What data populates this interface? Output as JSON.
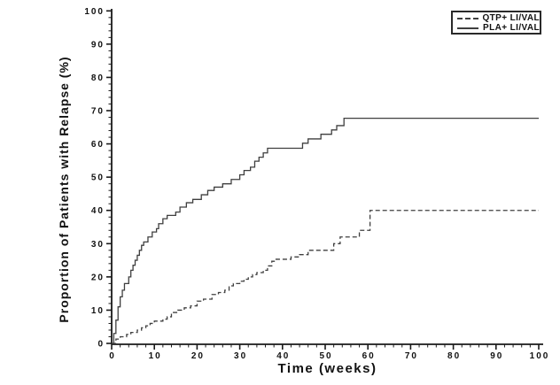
{
  "page": {
    "background_color": "#ffffff",
    "axis_color": "#1a1a1a",
    "curve_color": "#3f3f3f"
  },
  "chart_data": {
    "type": "line",
    "subtype": "kaplan-meier-step",
    "title": "",
    "xlabel": "Time (weeks)",
    "ylabel": "Proportion of Patients with Relapse (%)",
    "xlim": [
      0,
      100
    ],
    "ylim": [
      0,
      100
    ],
    "x_major_ticks": [
      0,
      10,
      20,
      30,
      40,
      50,
      60,
      70,
      80,
      90,
      100
    ],
    "x_minor_step": 2,
    "y_major_ticks": [
      0,
      10,
      20,
      30,
      40,
      50,
      60,
      70,
      80,
      90,
      100
    ],
    "y_minor_step": 2,
    "grid": false,
    "legend": {
      "position": "top-right",
      "border": true,
      "entries": [
        {
          "label": "QTP+ LI/VAL",
          "line_style": "dashed"
        },
        {
          "label": "PLA+ LI/VAL",
          "line_style": "solid"
        }
      ]
    },
    "series": [
      {
        "name": "QTP+ LI/VAL",
        "line_style": "dashed",
        "color": "#3f3f3f",
        "points": [
          [
            0,
            0
          ],
          [
            1,
            1.3
          ],
          [
            2,
            2
          ],
          [
            3.5,
            2.7
          ],
          [
            4.5,
            3.3
          ],
          [
            6,
            4
          ],
          [
            7,
            4.7
          ],
          [
            8,
            5.3
          ],
          [
            9,
            6
          ],
          [
            10,
            6.7
          ],
          [
            12,
            7.3
          ],
          [
            13,
            8
          ],
          [
            14,
            9.3
          ],
          [
            15.5,
            10
          ],
          [
            17,
            10.7
          ],
          [
            18.5,
            11.3
          ],
          [
            20,
            12.7
          ],
          [
            21.5,
            13.3
          ],
          [
            23.5,
            14.7
          ],
          [
            25,
            15.3
          ],
          [
            26.5,
            16
          ],
          [
            27.5,
            17.3
          ],
          [
            28.5,
            18
          ],
          [
            30,
            18.7
          ],
          [
            31,
            19.3
          ],
          [
            32,
            20
          ],
          [
            33,
            20.7
          ],
          [
            34,
            21.3
          ],
          [
            35.5,
            22
          ],
          [
            36.5,
            23.3
          ],
          [
            37.5,
            24.7
          ],
          [
            38.5,
            25.3
          ],
          [
            42,
            26
          ],
          [
            44,
            26.7
          ],
          [
            46,
            28
          ],
          [
            52,
            30
          ],
          [
            53.5,
            32
          ],
          [
            58,
            34
          ],
          [
            60.5,
            40
          ],
          [
            100,
            40
          ]
        ]
      },
      {
        "name": "PLA+ LI/VAL",
        "line_style": "solid",
        "color": "#3f3f3f",
        "points": [
          [
            0,
            0
          ],
          [
            0.5,
            3
          ],
          [
            1,
            7
          ],
          [
            1.5,
            11
          ],
          [
            2,
            14
          ],
          [
            2.5,
            16
          ],
          [
            3,
            18
          ],
          [
            4,
            20
          ],
          [
            4.5,
            22
          ],
          [
            5,
            23.5
          ],
          [
            5.5,
            25
          ],
          [
            6,
            26.5
          ],
          [
            6.5,
            28
          ],
          [
            7,
            29.5
          ],
          [
            7.5,
            30.5
          ],
          [
            8.5,
            32
          ],
          [
            9.5,
            33.5
          ],
          [
            10.5,
            34.5
          ],
          [
            11,
            36
          ],
          [
            12,
            37.5
          ],
          [
            13,
            38.5
          ],
          [
            15,
            39.5
          ],
          [
            16,
            41
          ],
          [
            17.5,
            42.3
          ],
          [
            19,
            43.3
          ],
          [
            21,
            44.7
          ],
          [
            22.5,
            46
          ],
          [
            24,
            47
          ],
          [
            26,
            48
          ],
          [
            28,
            49.3
          ],
          [
            30,
            50.7
          ],
          [
            31,
            52
          ],
          [
            32.5,
            53
          ],
          [
            33.5,
            54.8
          ],
          [
            34.5,
            56
          ],
          [
            35.5,
            57.3
          ],
          [
            36.5,
            58.7
          ],
          [
            44.7,
            60.2
          ],
          [
            46,
            61.5
          ],
          [
            49,
            62.9
          ],
          [
            51.5,
            64.2
          ],
          [
            52.7,
            65.5
          ],
          [
            54.4,
            67.7
          ],
          [
            100,
            67.7
          ]
        ]
      }
    ]
  }
}
